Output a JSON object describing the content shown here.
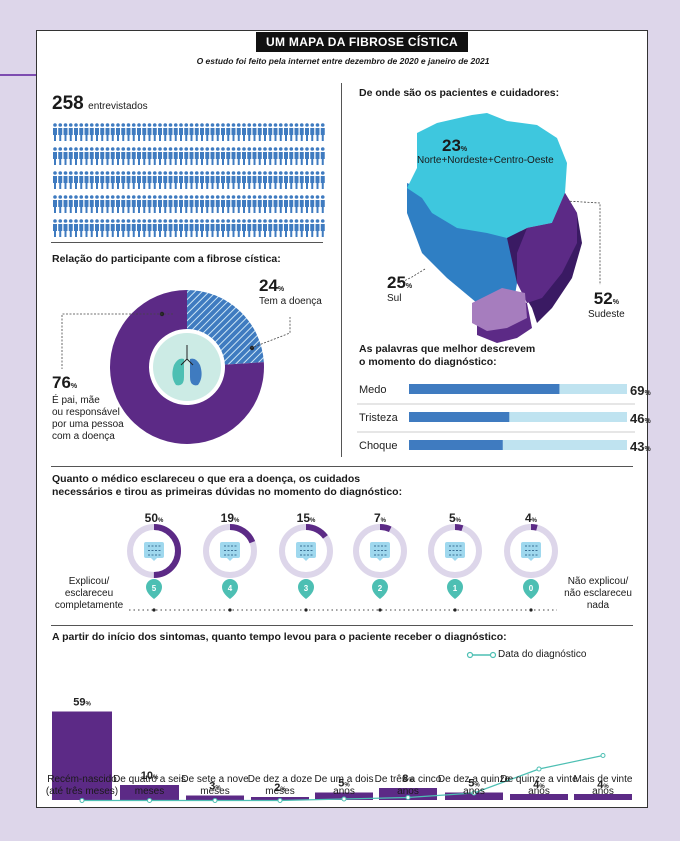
{
  "title": "UM MAPA DA FIBROSE CÍSTICA",
  "subtitle": "O estudo foi feito pela internet entre dezembro de 2020 e janeiro de 2021",
  "respondents": {
    "count": "258",
    "label": "entrevistados",
    "icon_rows": 5,
    "icons_per_row": 52
  },
  "relation": {
    "heading": "Relação do participante com a fibrose cística:",
    "has_disease": {
      "pct": "24",
      "unit": "%",
      "label": "Tem a doença"
    },
    "parent": {
      "pct": "76",
      "unit": "%",
      "label_lines": [
        "É pai, mãe",
        "ou responsável",
        "por uma pessoa",
        "com a doença"
      ]
    }
  },
  "regions": {
    "heading": "De onde são os pacientes e cuidadores:",
    "north": {
      "pct": "23",
      "unit": "%",
      "label": "Norte+Nordeste+Centro-Oeste"
    },
    "south": {
      "pct": "25",
      "unit": "%",
      "label": "Sul"
    },
    "southeast": {
      "pct": "52",
      "unit": "%",
      "label": "Sudeste"
    }
  },
  "words": {
    "heading_lines": [
      "As palavras que melhor descrevem",
      "o momento do diagnóstico:"
    ],
    "items": [
      {
        "label": "Medo",
        "pct": "69",
        "unit": "%"
      },
      {
        "label": "Tristeza",
        "pct": "46",
        "unit": "%"
      },
      {
        "label": "Choque",
        "pct": "43",
        "unit": "%"
      }
    ]
  },
  "clarity": {
    "heading_lines": [
      "Quanto o médico esclareceu o que era a doença, os cuidados",
      "necessários e tirou as primeiras dúvidas no momento do diagnóstico:"
    ],
    "left_label_lines": [
      "Explicou/",
      "esclareceu",
      "completamente"
    ],
    "right_label_lines": [
      "Não explicou/",
      "não esclareceu",
      "nada"
    ],
    "items": [
      {
        "pct": "50",
        "unit": "%",
        "score": "5"
      },
      {
        "pct": "19",
        "unit": "%",
        "score": "4"
      },
      {
        "pct": "15",
        "unit": "%",
        "score": "3"
      },
      {
        "pct": "7",
        "unit": "%",
        "score": "2"
      },
      {
        "pct": "5",
        "unit": "%",
        "score": "1"
      },
      {
        "pct": "4",
        "unit": "%",
        "score": "0"
      }
    ]
  },
  "time_heading": "A partir do início dos sintomas, quanto tempo levou para o paciente receber o diagnóstico:",
  "legend_label": "Data do diagnóstico",
  "colors": {
    "purple": "#5c2a86",
    "teal": "#4dbfb3",
    "cyan": "#3ec7de",
    "blue": "#3f7bc0",
    "lightblue": "#bfe3f0",
    "lavender": "#ddd6ea",
    "mint": "#ccebe5"
  },
  "chart_data": [
    {
      "type": "pie",
      "labels": [
        "Tem a doença",
        "É pai, mãe ou responsável por uma pessoa com a doença"
      ],
      "values": [
        24,
        76
      ]
    },
    {
      "type": "bar",
      "orientation": "horizontal",
      "categories": [
        "Medo",
        "Tristeza",
        "Choque"
      ],
      "values": [
        69,
        46,
        43
      ],
      "xlim": [
        0,
        100
      ]
    },
    {
      "type": "bar",
      "categories": [
        "5",
        "4",
        "3",
        "2",
        "1",
        "0"
      ],
      "values": [
        50,
        19,
        15,
        7,
        5,
        4
      ]
    },
    {
      "type": "bar",
      "categories": [
        "Recém-nascido (até três meses)",
        "De quatro a seis meses",
        "De sete a nove meses",
        "De dez a doze meses",
        "De um a dois anos",
        "De três a cinco anos",
        "De dez a quinze anos",
        "De quinze a vinte anos",
        "Mais de vinte anos"
      ],
      "values": [
        59,
        10,
        3,
        2,
        5,
        8,
        5,
        4,
        4
      ],
      "series": [
        {
          "name": "Data do diagnóstico",
          "type": "line",
          "values": [
            0,
            0,
            0,
            0,
            1,
            2,
            5,
            21,
            30
          ]
        }
      ]
    }
  ]
}
